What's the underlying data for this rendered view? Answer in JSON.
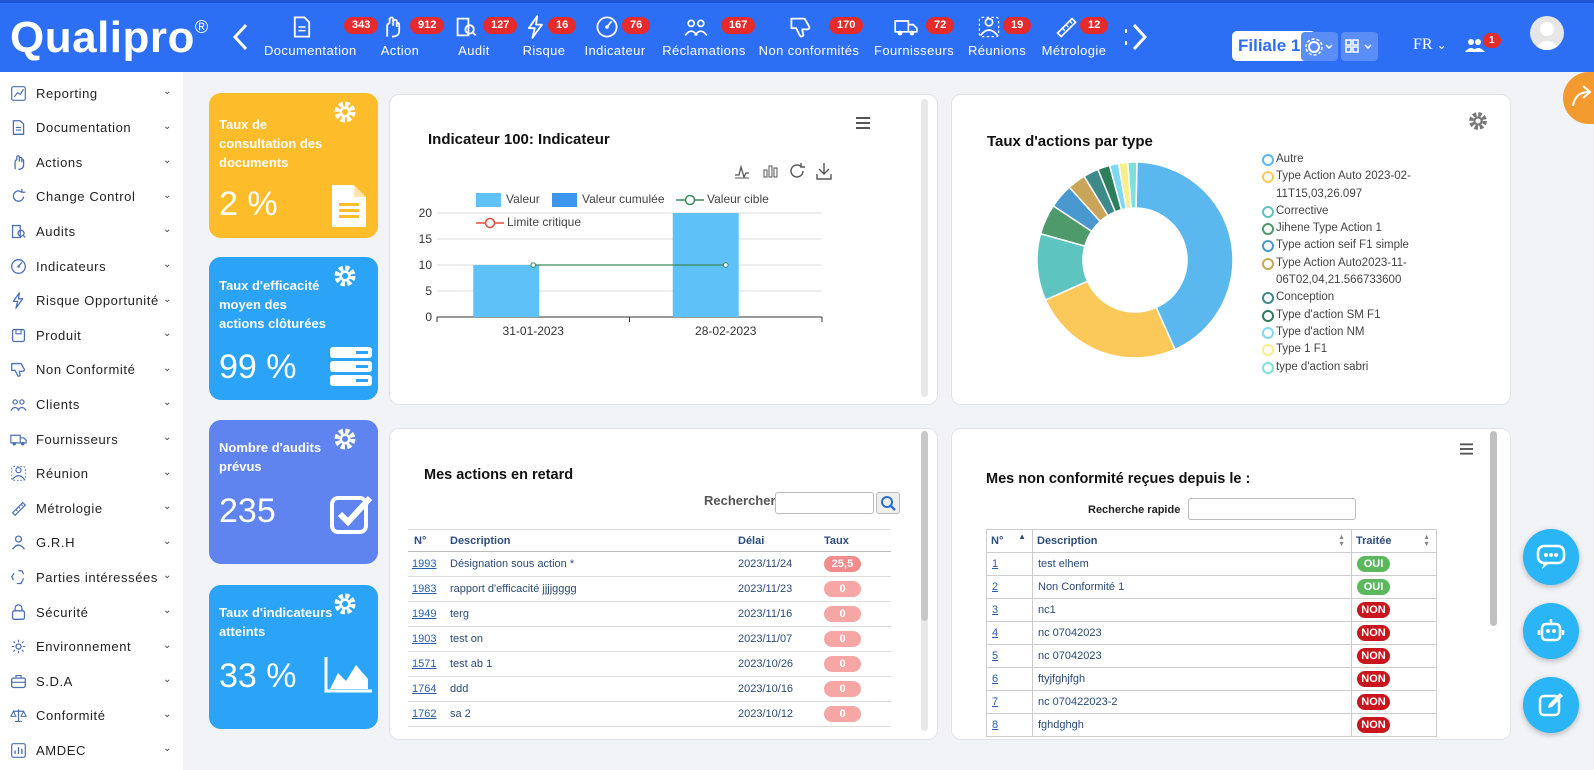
{
  "brand": {
    "name": "Qualipro",
    "reg": "®"
  },
  "colors": {
    "topbar": "#2c6ff4",
    "yellow": "#fdbd2a",
    "blue": "#2ba3f7",
    "indigo": "#5f84ef",
    "badge": "#e52b2b"
  },
  "nav": [
    {
      "label": "Documentation",
      "badge": "343",
      "icon": "document-icon"
    },
    {
      "label": "Action",
      "badge": "912",
      "icon": "hand-icon"
    },
    {
      "label": "Audit",
      "badge": "127",
      "icon": "audit-icon"
    },
    {
      "label": "Risque",
      "badge": "16",
      "icon": "bolt-icon"
    },
    {
      "label": "Indicateur",
      "badge": "76",
      "icon": "gauge-icon"
    },
    {
      "label": "Réclamations",
      "badge": "167",
      "icon": "people-icon"
    },
    {
      "label": "Non conformités",
      "badge": "170",
      "icon": "thumbs-down-icon"
    },
    {
      "label": "Fournisseurs",
      "badge": "72",
      "icon": "truck-icon"
    },
    {
      "label": "Réunions",
      "badge": "19",
      "icon": "meeting-icon"
    },
    {
      "label": "Métrologie",
      "badge": "12",
      "icon": "ruler-icon"
    }
  ],
  "topbar": {
    "filiale": "Filiale 1",
    "lang": "FR",
    "users_badge": "1"
  },
  "sidebar": [
    {
      "label": "Reporting",
      "icon": "reporting-icon"
    },
    {
      "label": "Documentation",
      "icon": "document-icon"
    },
    {
      "label": "Actions",
      "icon": "hand-icon"
    },
    {
      "label": "Change Control",
      "icon": "refresh-icon"
    },
    {
      "label": "Audits",
      "icon": "audit-icon"
    },
    {
      "label": "Indicateurs",
      "icon": "gauge-icon"
    },
    {
      "label": "Risque Opportunité",
      "icon": "bolt-icon"
    },
    {
      "label": "Produit",
      "icon": "box-icon"
    },
    {
      "label": "Non Conformité",
      "icon": "thumbs-down-icon"
    },
    {
      "label": "Clients",
      "icon": "people-icon"
    },
    {
      "label": "Fournisseurs",
      "icon": "truck-icon"
    },
    {
      "label": "Réunion",
      "icon": "meeting-icon"
    },
    {
      "label": "Métrologie",
      "icon": "ruler-icon"
    },
    {
      "label": "G.R.H",
      "icon": "user-icon"
    },
    {
      "label": "Parties intéressées",
      "icon": "recycle-icon"
    },
    {
      "label": "Sécurité",
      "icon": "lock-icon"
    },
    {
      "label": "Environnement",
      "icon": "leaf-icon"
    },
    {
      "label": "S.D.A",
      "icon": "briefcase-icon"
    },
    {
      "label": "Conformité",
      "icon": "scale-icon"
    },
    {
      "label": "AMDEC",
      "icon": "chart-icon"
    }
  ],
  "kpis": [
    {
      "title": "Taux de consultation des documents",
      "value": "2 %",
      "icon": "file-icon"
    },
    {
      "title": "Taux d'efficacité moyen des actions clôturées",
      "value": "99 %",
      "icon": "server-icon"
    },
    {
      "title": "Nombre d'audits prévus",
      "value": "235",
      "icon": "checkbox-icon"
    },
    {
      "title": "Taux d'indicateurs atteints",
      "value": "33 %",
      "icon": "area-chart-icon"
    }
  ],
  "indicator_card": {
    "title": "Indicateur 100: Indicateur",
    "legend": [
      "Valeur",
      "Valeur cumulée",
      "Valeur cible",
      "Limite critique"
    ]
  },
  "chart_data": [
    {
      "type": "bar",
      "title": "Indicateur 100: Indicateur",
      "categories": [
        "31-01-2023",
        "28-02-2023"
      ],
      "series": [
        {
          "name": "Valeur",
          "values": [
            10,
            20
          ]
        },
        {
          "name": "Valeur cible",
          "values": [
            10,
            10
          ]
        }
      ],
      "yticks": [
        "0",
        "5",
        "10",
        "15",
        "20"
      ],
      "ylim": [
        0,
        20
      ],
      "grid": true,
      "legend": "top"
    },
    {
      "type": "pie",
      "title": "Taux d'actions par type",
      "labels": [
        "Autre",
        "Type Action Auto 2023-02-11T15,03,26.097",
        "Corrective",
        "Jihene Type Action 1",
        "Type action seif F1 simple",
        "Type Action Auto2023-11-06T02,04,21.566733600",
        "Conception",
        "Type d'action SM F1",
        "Type d'action NM",
        "Type 1 F1",
        "type d'action sabri"
      ],
      "values": [
        43,
        25,
        11,
        5,
        4,
        3,
        2.5,
        2,
        1.5,
        1.5,
        1.5
      ],
      "colors": [
        "#5ab8ee",
        "#fbc85a",
        "#5ec4c0",
        "#4e9a6a",
        "#4a98d0",
        "#c9a55a",
        "#3e8a8a",
        "#2e7e5e",
        "#7ed8f2",
        "#f8ee8a",
        "#7ee0da"
      ],
      "legend": "right"
    }
  ],
  "pie_card": {
    "title": "Taux d'actions par type"
  },
  "late_actions": {
    "title": "Mes actions en retard",
    "search_label": "Rechercher",
    "columns": [
      "N°",
      "Description",
      "Délai",
      "Taux"
    ],
    "rows": [
      {
        "num": "1993",
        "desc": "Désignation sous action *",
        "delai": "2023/11/24",
        "taux": "25,5"
      },
      {
        "num": "1983",
        "desc": "rapport d'efficacité jjjjgggg",
        "delai": "2023/11/23",
        "taux": "0"
      },
      {
        "num": "1949",
        "desc": "terg",
        "delai": "2023/11/16",
        "taux": "0"
      },
      {
        "num": "1903",
        "desc": "test on",
        "delai": "2023/11/07",
        "taux": "0"
      },
      {
        "num": "1571",
        "desc": "test ab 1",
        "delai": "2023/10/26",
        "taux": "0"
      },
      {
        "num": "1764",
        "desc": "ddd",
        "delai": "2023/10/16",
        "taux": "0"
      },
      {
        "num": "1762",
        "desc": "sa 2",
        "delai": "2023/10/12",
        "taux": "0"
      }
    ]
  },
  "nc_card": {
    "title": "Mes non conformité reçues depuis le :",
    "search_label": "Recherche rapide",
    "columns": [
      "N°",
      "Description",
      "Traitée"
    ],
    "rows": [
      {
        "num": "1",
        "desc": "test elhem",
        "status": "OUI"
      },
      {
        "num": "2",
        "desc": "Non Conformité 1",
        "status": "OUI"
      },
      {
        "num": "3",
        "desc": "nc1",
        "status": "NON"
      },
      {
        "num": "4",
        "desc": "nc 07042023",
        "status": "NON"
      },
      {
        "num": "5",
        "desc": "nc 07042023",
        "status": "NON"
      },
      {
        "num": "6",
        "desc": "ftyjfghjfgh",
        "status": "NON"
      },
      {
        "num": "7",
        "desc": "nc 070422023-2",
        "status": "NON"
      },
      {
        "num": "8",
        "desc": "fghdghgh",
        "status": "NON"
      }
    ]
  }
}
